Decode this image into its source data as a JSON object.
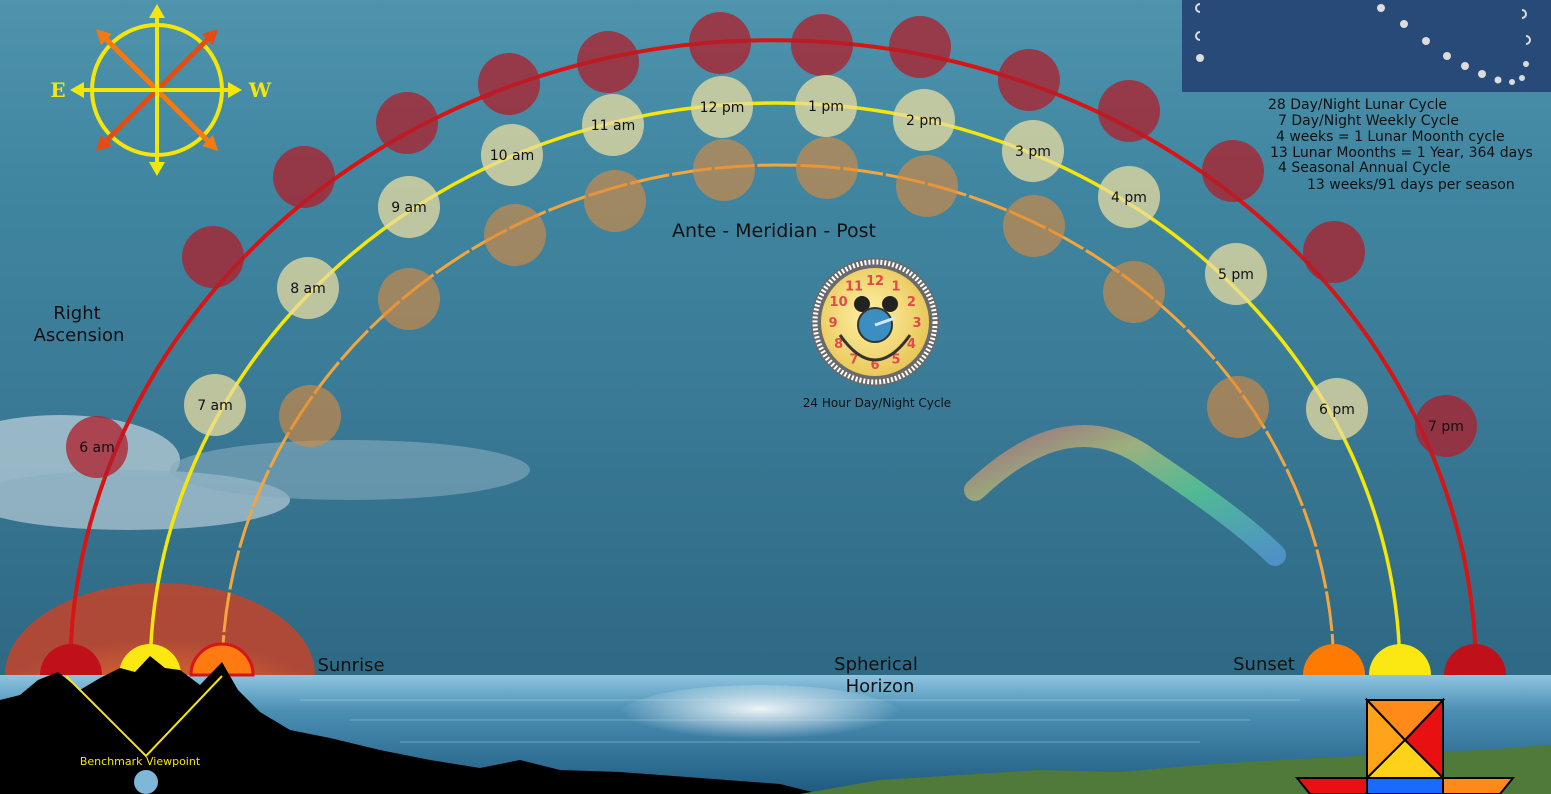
{
  "labels": {
    "right_ascension_1": "Right",
    "right_ascension_2": "Ascension",
    "ante_meridian_post": "Ante - Meridian - Post",
    "clock_caption": "24 Hour Day/Night Cycle",
    "sunrise": "Sunrise",
    "sunset": "Sunset",
    "spherical": "Spherical",
    "horizon": "Horizon",
    "benchmark": "Benchmark Viewpoint",
    "compass_east": "E",
    "compass_west": "W"
  },
  "info_lines": [
    "28 Day/Night Lunar Cycle",
    "7 Day/Night Weekly Cycle",
    "4 weeks = 1 Lunar Moonth cycle",
    "13 Lunar Moonths = 1 Year, 364 days",
    "4 Seasonal Annual Cycle",
    "13 weeks/91 days per season"
  ],
  "hours_outer": [
    "6 am",
    "7 pm"
  ],
  "hours_middle": [
    "7 am",
    "8 am",
    "9 am",
    "10 am",
    "11 am",
    "12 pm",
    "1 pm",
    "2 pm",
    "3 pm",
    "4 pm",
    "5 pm",
    "6 pm"
  ],
  "clock_numbers": [
    "12",
    "1",
    "2",
    "3",
    "4",
    "5",
    "6",
    "7",
    "8",
    "9",
    "10",
    "11"
  ],
  "colors": {
    "outer_arc": "#d81414",
    "middle_arc": "#f5e60a",
    "inner_arc": "#f3a53e",
    "outer_disc": "#b01e2a",
    "middle_disc": "#e8dca0",
    "inner_disc": "#e08a3a"
  },
  "icons": [
    "compass-icon",
    "clock-icon",
    "moon-phases-icon",
    "rainbow-icon",
    "tangram-star-icon",
    "mountain-silhouette-icon"
  ]
}
